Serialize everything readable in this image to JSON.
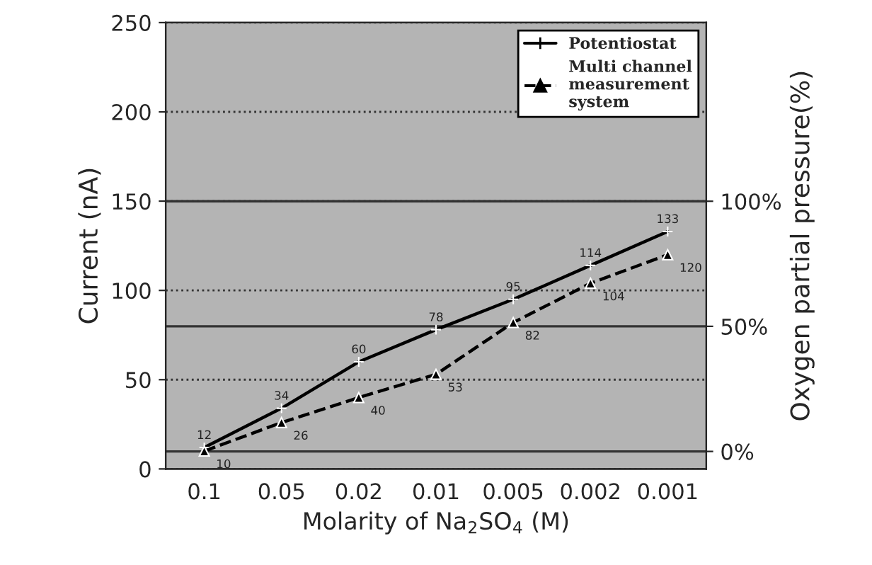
{
  "chart_data": {
    "type": "line",
    "categories": [
      "0.1",
      "0.05",
      "0.02",
      "0.01",
      "0.005",
      "0.002",
      "0.001"
    ],
    "series": [
      {
        "name": "Potentiostat",
        "color": "#000000",
        "values": [
          12,
          34,
          60,
          78,
          95,
          114,
          133
        ],
        "marker": "cross",
        "line_style": "solid"
      },
      {
        "name": "Multi channel\nmeasurement\nsystem",
        "color": "#000000",
        "values": [
          10,
          26,
          40,
          53,
          82,
          104,
          120
        ],
        "marker": "triangle",
        "line_style": "dashed"
      }
    ],
    "data_labels": true,
    "xlabel": "Molarity of Na$_{2}$SO$_{4}$ (M)",
    "ylabel": "Current (nA)",
    "y2label": "Oxygen partial pressure(%)",
    "ylim": [
      0,
      250
    ],
    "yticks": [
      0,
      50,
      100,
      150,
      200,
      250
    ],
    "y2lim": [
      -7,
      171.4
    ],
    "y2ticks": [
      {
        "value": 0,
        "label": "0%"
      },
      {
        "value": 50,
        "label": "50%"
      },
      {
        "value": 100,
        "label": "100%"
      }
    ],
    "grid": "y",
    "legend": "top right"
  }
}
